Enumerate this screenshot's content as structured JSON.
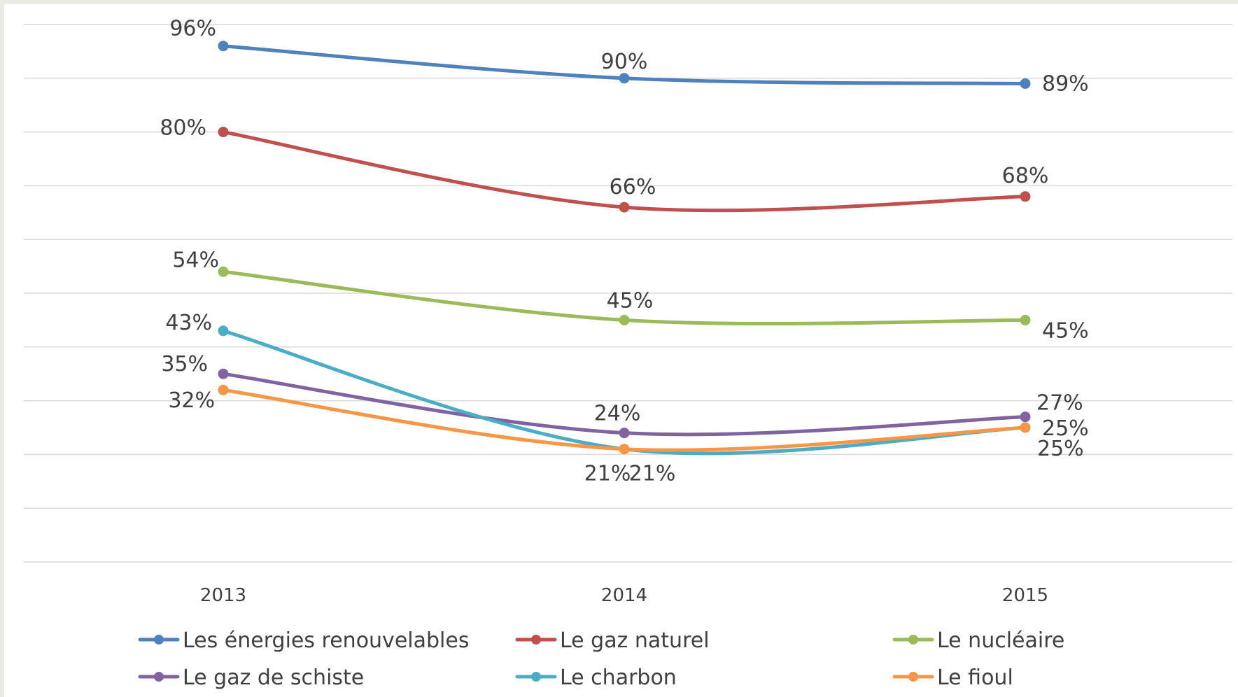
{
  "chart_data": {
    "type": "line",
    "categories": [
      "2013",
      "2014",
      "2015"
    ],
    "ylim": [
      0,
      100
    ],
    "grid": true,
    "legend_placement": "bottom",
    "series": [
      {
        "name": "Les énergies renouvelables",
        "color": "#4f81bd",
        "values": [
          96,
          90,
          89
        ],
        "labels": [
          "96%",
          "90%",
          "89%"
        ]
      },
      {
        "name": "Le gaz naturel",
        "color": "#c0504d",
        "values": [
          80,
          66,
          68
        ],
        "labels": [
          "80%",
          "66%",
          "68%"
        ]
      },
      {
        "name": "Le nucléaire",
        "color": "#9bbb59",
        "values": [
          54,
          45,
          45
        ],
        "labels": [
          "54%",
          "45%",
          "45%"
        ]
      },
      {
        "name": "Le gaz de schiste",
        "color": "#8064a2",
        "values": [
          35,
          24,
          27
        ],
        "labels": [
          "35%",
          "24%",
          "27%"
        ]
      },
      {
        "name": "Le charbon",
        "color": "#4bacc6",
        "values": [
          43,
          21,
          25
        ],
        "labels": [
          "43%",
          "21%",
          "25%"
        ]
      },
      {
        "name": "Le fioul",
        "color": "#f79646",
        "values": [
          32,
          21,
          25
        ],
        "labels": [
          "32%",
          "21%",
          "25%"
        ]
      }
    ]
  }
}
